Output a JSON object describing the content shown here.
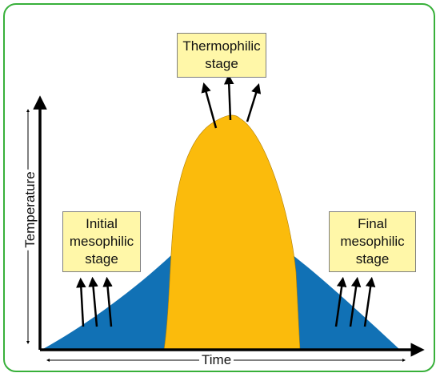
{
  "stages": {
    "thermophilic": [
      "Thermophilic",
      "stage"
    ],
    "initial": [
      "Initial",
      "mesophilic",
      "stage"
    ],
    "final": [
      "Final",
      "mesophilic",
      "stage"
    ]
  },
  "axes": {
    "x_label": "Time",
    "y_label": "Temperature"
  },
  "colors": {
    "frame": "#38b03a",
    "mesophilic_fill": "#1171b5",
    "thermophilic_fill": "#fbbb0c",
    "label_box": "#fff7a8",
    "arrows": "#000000"
  }
}
